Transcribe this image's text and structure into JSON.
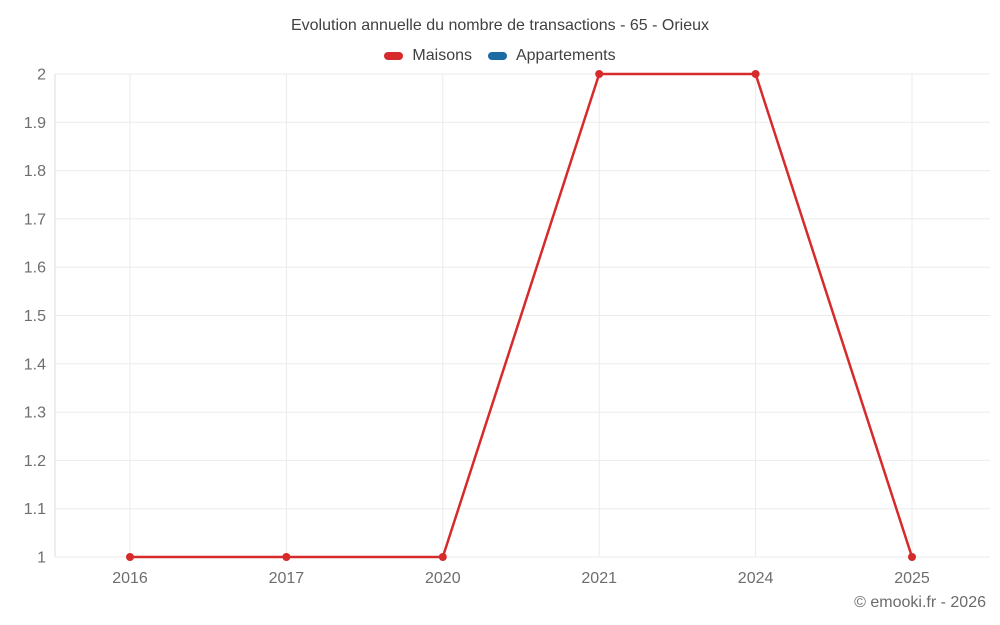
{
  "chart_data": {
    "type": "line",
    "title": "Evolution annuelle du nombre de transactions - 65 - Orieux",
    "categories": [
      "2016",
      "2017",
      "2020",
      "2021",
      "2024",
      "2025"
    ],
    "series": [
      {
        "name": "Maisons",
        "color": "#d62a2b",
        "values": [
          1,
          1,
          1,
          2,
          2,
          1
        ]
      },
      {
        "name": "Appartements",
        "color": "#1b6ca3",
        "values": []
      }
    ],
    "ylim": [
      1,
      2
    ],
    "ytick_step": 0.1,
    "grid": true,
    "legend_position": "top",
    "xlabel": "",
    "ylabel": ""
  },
  "footer": {
    "credit": "© emooki.fr - 2026"
  },
  "colors": {
    "grid": "#ebebeb",
    "axis": "#dedede",
    "title_text": "#414141",
    "tick_text": "#6e6e6e",
    "footer_text": "#6b6b6b"
  }
}
